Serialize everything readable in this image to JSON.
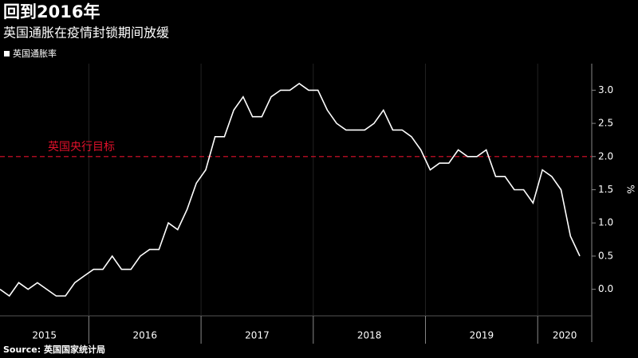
{
  "chart_data": {
    "type": "line",
    "title": "回到2016年",
    "subtitle": "英国通胀在疫情封锁期间放缓",
    "y_label": "%",
    "source": "Source: 英国国家统计局",
    "annotation": {
      "text": "英国央行目标",
      "value": 2.0,
      "color": "#e0102a"
    },
    "categories": [
      "2015",
      null,
      null,
      null,
      null,
      null,
      null,
      null,
      null,
      null,
      "2016",
      null,
      null,
      null,
      null,
      null,
      null,
      null,
      null,
      null,
      null,
      null,
      "2017",
      null,
      null,
      null,
      null,
      null,
      null,
      null,
      null,
      null,
      null,
      null,
      "2018",
      null,
      null,
      null,
      null,
      null,
      null,
      null,
      null,
      null,
      null,
      null,
      "2019",
      null,
      null,
      null,
      null,
      null,
      null,
      null,
      null,
      null,
      null,
      null,
      "2020",
      null,
      null,
      null,
      null
    ],
    "series": [
      {
        "name": "英国通胀率",
        "color": "#ffffff",
        "values": [
          0.0,
          -0.1,
          0.1,
          0.0,
          0.1,
          0.0,
          -0.1,
          -0.1,
          0.1,
          0.2,
          0.3,
          0.3,
          0.5,
          0.3,
          0.3,
          0.5,
          0.6,
          0.6,
          1.0,
          0.9,
          1.2,
          1.6,
          1.8,
          2.3,
          2.3,
          2.7,
          2.9,
          2.6,
          2.6,
          2.9,
          3.0,
          3.0,
          3.1,
          3.0,
          3.0,
          2.7,
          2.5,
          2.4,
          2.4,
          2.4,
          2.5,
          2.7,
          2.4,
          2.4,
          2.3,
          2.1,
          1.8,
          1.9,
          1.9,
          2.1,
          2.0,
          2.0,
          2.1,
          1.7,
          1.7,
          1.5,
          1.5,
          1.3,
          1.8,
          1.7,
          1.5,
          0.8,
          0.5
        ]
      }
    ],
    "ylim": [
      -0.4,
      3.4
    ],
    "yticks": [
      {
        "value": 0,
        "label": "0.0"
      },
      0.5,
      {
        "value": 1,
        "label": "1.0"
      },
      1.5,
      {
        "value": 2,
        "label": "2.0"
      },
      2.5,
      {
        "value": 3,
        "label": "3.0"
      }
    ],
    "legend": "top-left"
  }
}
